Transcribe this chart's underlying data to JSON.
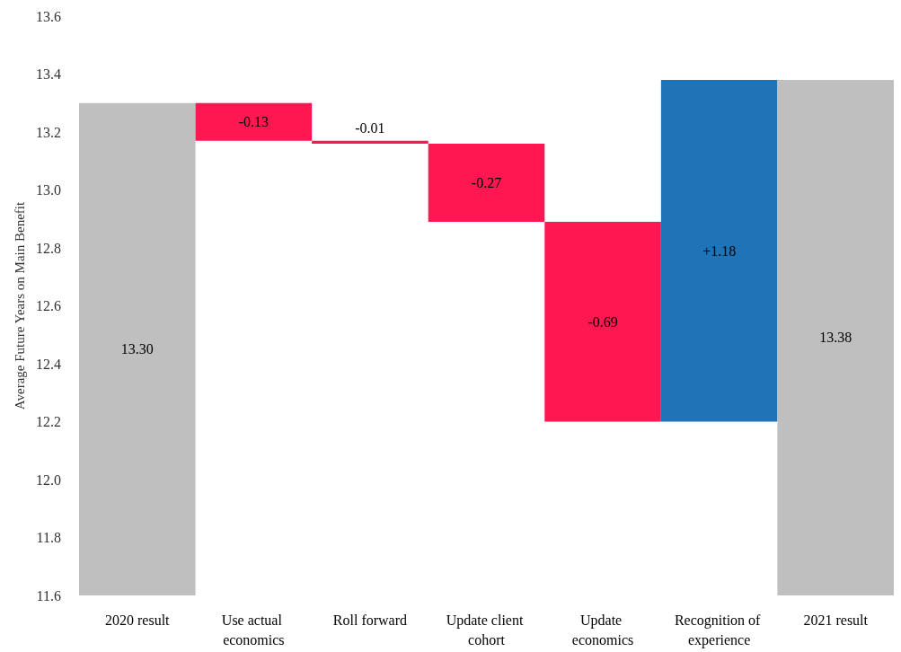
{
  "chart_data": {
    "type": "bar",
    "ylabel": "Average Future Years on Main Benefit",
    "categories": [
      "2020 result",
      "Use actual economics",
      "Roll forward",
      "Update client cohort",
      "Update economics",
      "Recognition of experience",
      "2021 result"
    ],
    "values": [
      13.3,
      -0.13,
      -0.01,
      -0.27,
      -0.69,
      1.18,
      13.38
    ],
    "base": [
      null,
      13.3,
      13.17,
      13.16,
      12.89,
      12.2,
      null
    ],
    "colors": [
      "#bfbfbf",
      "#ff1751",
      "#ff1751",
      "#ff1751",
      "#ff1751",
      "#1f73b7",
      "#bfbfbf"
    ],
    "value_labels": [
      "13.30",
      "-0.13",
      "-0.01",
      "-0.27",
      "-0.69",
      "+1.18",
      "13.38"
    ],
    "ylim": [
      11.6,
      13.6
    ],
    "yticks": [
      {
        "value": 11.6,
        "label": "11.6"
      },
      {
        "value": 11.8,
        "label": "11.8"
      },
      {
        "value": 12.0,
        "label": "12.0"
      },
      {
        "value": 12.2,
        "label": "12.2"
      },
      {
        "value": 12.4,
        "label": "12.4"
      },
      {
        "value": 12.6,
        "label": "12.6"
      },
      {
        "value": 12.8,
        "label": "12.8"
      },
      {
        "value": 13.0,
        "label": "13.0"
      },
      {
        "value": 13.2,
        "label": "13.2"
      },
      {
        "value": 13.4,
        "label": "13.4"
      },
      {
        "value": 13.6,
        "label": "13.6"
      }
    ],
    "grid": false
  }
}
